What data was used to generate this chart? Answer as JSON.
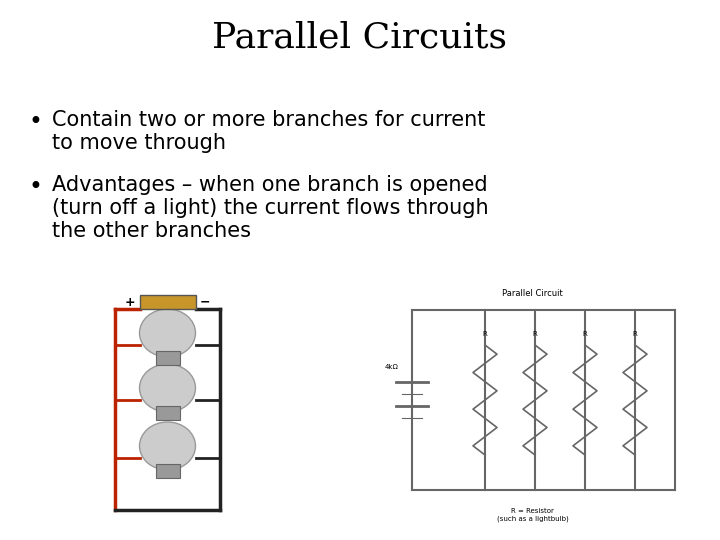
{
  "title": "Parallel Circuits",
  "title_fontsize": 26,
  "title_font": "DejaVu Serif",
  "bg_color": "#ffffff",
  "text_color": "#000000",
  "bullet1_line1": "Contain two or more branches for current",
  "bullet1_line2": "to move through",
  "bullet2_line1": "Advantages – when one branch is opened",
  "bullet2_line2": "(turn off a light) the current flows through",
  "bullet2_line3": "the other branches",
  "bullet_fontsize": 15,
  "wire_color_red": "#bb2200",
  "wire_color_black": "#222222",
  "battery_color": "#c8952a",
  "bulb_color": "#cccccc",
  "circuit2_color": "#666666"
}
